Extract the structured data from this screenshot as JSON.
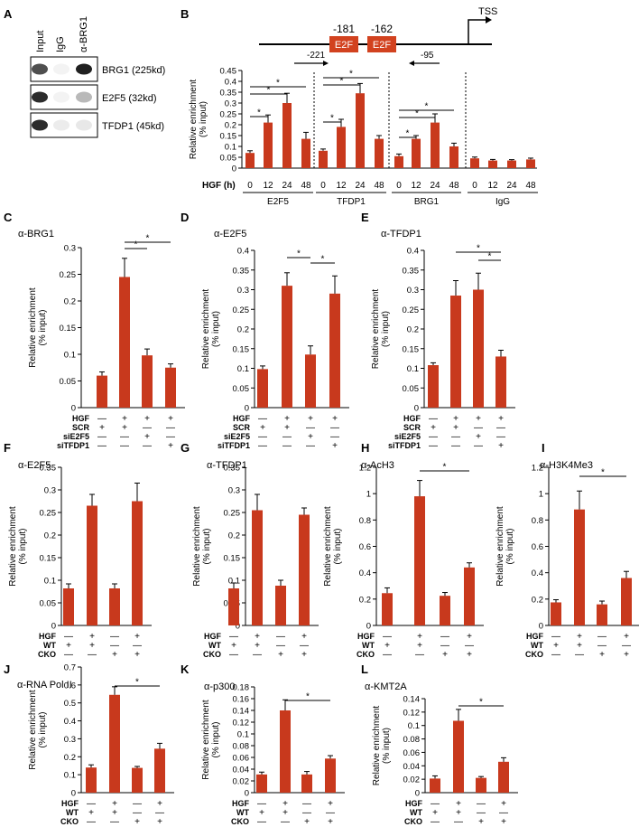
{
  "colors": {
    "bar": "#c8391d",
    "axis": "#000000",
    "e2f_box": "#d2421f"
  },
  "panel_letters": [
    "A",
    "B",
    "C",
    "D",
    "E",
    "F",
    "G",
    "H",
    "I",
    "J",
    "K",
    "L"
  ],
  "western_blot": {
    "lane_labels": [
      "Input",
      "IgG",
      "α-BRG1"
    ],
    "bands": [
      {
        "label": "BRG1 (225kd)",
        "intensity": [
          0.75,
          0.05,
          0.95
        ]
      },
      {
        "label": "E2F5 (32kd)",
        "intensity": [
          0.9,
          0.05,
          0.3
        ]
      },
      {
        "label": "TFDP1 (45kd)",
        "intensity": [
          0.9,
          0.08,
          0.1
        ]
      }
    ]
  },
  "promoter": {
    "tss_label": "TSS",
    "sites": [
      {
        "position": "-181",
        "label": "E2F"
      },
      {
        "position": "-162",
        "label": "E2F"
      }
    ],
    "primers": [
      {
        "label": "-221",
        "direction": "forward"
      },
      {
        "label": "-95",
        "direction": "reverse"
      }
    ]
  },
  "chart_data": [
    {
      "panel": "B",
      "type": "bar",
      "ylabel": "Relative enrichment (% input)",
      "ylim": [
        0,
        0.45
      ],
      "yticks": [
        0,
        0.05,
        0.1,
        0.15,
        0.2,
        0.25,
        0.3,
        0.35,
        0.4,
        0.45
      ],
      "row_labels": [
        "HGF (h)"
      ],
      "groups": [
        {
          "name": "E2F5",
          "categories": [
            "0",
            "12",
            "24",
            "48"
          ],
          "values": [
            0.07,
            0.21,
            0.3,
            0.135
          ],
          "errors": [
            0.01,
            0.035,
            0.045,
            0.03
          ]
        },
        {
          "name": "TFDP1",
          "categories": [
            "0",
            "12",
            "24",
            "48"
          ],
          "values": [
            0.08,
            0.19,
            0.345,
            0.135
          ],
          "errors": [
            0.008,
            0.035,
            0.045,
            0.015
          ]
        },
        {
          "name": "BRG1",
          "categories": [
            "0",
            "12",
            "24",
            "48"
          ],
          "values": [
            0.055,
            0.135,
            0.21,
            0.1
          ],
          "errors": [
            0.01,
            0.015,
            0.04,
            0.015
          ]
        },
        {
          "name": "IgG",
          "categories": [
            "0",
            "12",
            "24",
            "48"
          ],
          "values": [
            0.045,
            0.035,
            0.035,
            0.04
          ],
          "errors": [
            0.006,
            0.005,
            0.004,
            0.006
          ]
        }
      ],
      "significance_marker": "*"
    },
    {
      "panel": "C",
      "type": "bar",
      "title": "α-BRG1",
      "ylabel": "Relative enrichment (% input)",
      "ylim": [
        0,
        0.3
      ],
      "yticks": [
        0,
        0.05,
        0.1,
        0.15,
        0.2,
        0.25,
        0.3
      ],
      "values": [
        0.06,
        0.245,
        0.098,
        0.075
      ],
      "errors": [
        0.007,
        0.035,
        0.012,
        0.007
      ],
      "conditions": [
        {
          "label": "HGF",
          "marks": [
            "—",
            "+",
            "+",
            "+"
          ]
        },
        {
          "label": "SCR",
          "marks": [
            "+",
            "+",
            "—",
            "—"
          ]
        },
        {
          "label": "siE2F5",
          "marks": [
            "—",
            "—",
            "+",
            "—"
          ]
        },
        {
          "label": "siTFDP1",
          "marks": [
            "—",
            "—",
            "—",
            "+"
          ]
        }
      ],
      "significance_marker": "*"
    },
    {
      "panel": "D",
      "type": "bar",
      "title": "α-E2F5",
      "ylabel": "Relative enrichment (% input)",
      "ylim": [
        0,
        0.4
      ],
      "yticks": [
        0,
        0.05,
        0.1,
        0.15,
        0.2,
        0.25,
        0.3,
        0.35,
        0.4
      ],
      "values": [
        0.098,
        0.31,
        0.135,
        0.29
      ],
      "errors": [
        0.008,
        0.033,
        0.022,
        0.045
      ],
      "conditions": [
        {
          "label": "HGF",
          "marks": [
            "—",
            "+",
            "+",
            "+"
          ]
        },
        {
          "label": "SCR",
          "marks": [
            "+",
            "+",
            "—",
            "—"
          ]
        },
        {
          "label": "siE2F5",
          "marks": [
            "—",
            "—",
            "+",
            "—"
          ]
        },
        {
          "label": "siTFDP1",
          "marks": [
            "—",
            "—",
            "—",
            "+"
          ]
        }
      ],
      "significance_marker": "*"
    },
    {
      "panel": "E",
      "type": "bar",
      "title": "α-TFDP1",
      "ylabel": "Relative enrichment (% input)",
      "ylim": [
        0,
        0.4
      ],
      "yticks": [
        0,
        0.05,
        0.1,
        0.15,
        0.2,
        0.25,
        0.3,
        0.35,
        0.4
      ],
      "values": [
        0.108,
        0.285,
        0.3,
        0.13
      ],
      "errors": [
        0.006,
        0.038,
        0.042,
        0.016
      ],
      "conditions": [
        {
          "label": "HGF",
          "marks": [
            "—",
            "+",
            "+",
            "+"
          ]
        },
        {
          "label": "SCR",
          "marks": [
            "+",
            "+",
            "—",
            "—"
          ]
        },
        {
          "label": "siE2F5",
          "marks": [
            "—",
            "—",
            "+",
            "—"
          ]
        },
        {
          "label": "siTFDP1",
          "marks": [
            "—",
            "—",
            "—",
            "+"
          ]
        }
      ],
      "significance_marker": "*"
    },
    {
      "panel": "F",
      "type": "bar",
      "title": "α-E2F5",
      "ylabel": "Relative enrichment (% input)",
      "ylim": [
        0,
        0.35
      ],
      "yticks": [
        0,
        0.05,
        0.1,
        0.15,
        0.2,
        0.25,
        0.3,
        0.35
      ],
      "values": [
        0.082,
        0.265,
        0.082,
        0.275
      ],
      "errors": [
        0.01,
        0.025,
        0.01,
        0.04
      ],
      "conditions": [
        {
          "label": "HGF",
          "marks": [
            "—",
            "+",
            "—",
            "+"
          ]
        },
        {
          "label": "WT",
          "marks": [
            "+",
            "+",
            "—",
            "—"
          ]
        },
        {
          "label": "CKO",
          "marks": [
            "—",
            "—",
            "+",
            "+"
          ]
        }
      ]
    },
    {
      "panel": "G",
      "type": "bar",
      "title": "α-TFDP1",
      "ylabel": "Relative enrichment (% input)",
      "ylim": [
        0,
        0.35
      ],
      "yticks": [
        0,
        0.05,
        0.1,
        0.15,
        0.2,
        0.25,
        0.3,
        0.35
      ],
      "values": [
        0.082,
        0.255,
        0.088,
        0.245
      ],
      "errors": [
        0.012,
        0.035,
        0.012,
        0.015
      ],
      "conditions": [
        {
          "label": "HGF",
          "marks": [
            "—",
            "+",
            "—",
            "+"
          ]
        },
        {
          "label": "WT",
          "marks": [
            "+",
            "+",
            "—",
            "—"
          ]
        },
        {
          "label": "CKO",
          "marks": [
            "—",
            "—",
            "+",
            "+"
          ]
        }
      ]
    },
    {
      "panel": "H",
      "type": "bar",
      "title": "α-AcH3",
      "ylabel": "Relative enrichment (% input)",
      "ylim": [
        0,
        1.2
      ],
      "yticks": [
        0,
        0.2,
        0.4,
        0.6,
        0.8,
        1,
        1.2
      ],
      "values": [
        0.245,
        0.98,
        0.225,
        0.44
      ],
      "errors": [
        0.04,
        0.12,
        0.025,
        0.035
      ],
      "conditions": [
        {
          "label": "HGF",
          "marks": [
            "—",
            "+",
            "—",
            "+"
          ]
        },
        {
          "label": "WT",
          "marks": [
            "+",
            "+",
            "—",
            "—"
          ]
        },
        {
          "label": "CKO",
          "marks": [
            "—",
            "—",
            "+",
            "+"
          ]
        }
      ],
      "significance_marker": "*"
    },
    {
      "panel": "I",
      "type": "bar",
      "title": "α-H3K4Me3",
      "ylabel": "Relative enrichment (% input)",
      "ylim": [
        0,
        1.2
      ],
      "yticks": [
        0,
        0.2,
        0.4,
        0.6,
        0.8,
        1,
        1.2
      ],
      "values": [
        0.175,
        0.88,
        0.16,
        0.36
      ],
      "errors": [
        0.02,
        0.14,
        0.025,
        0.05
      ],
      "conditions": [
        {
          "label": "HGF",
          "marks": [
            "—",
            "+",
            "—",
            "+"
          ]
        },
        {
          "label": "WT",
          "marks": [
            "+",
            "+",
            "—",
            "—"
          ]
        },
        {
          "label": "CKO",
          "marks": [
            "—",
            "—",
            "+",
            "+"
          ]
        }
      ],
      "significance_marker": "*"
    },
    {
      "panel": "J",
      "type": "bar",
      "title": "α-RNA Pol II",
      "ylabel": "Relative enrichment (% input)",
      "ylim": [
        0,
        0.7
      ],
      "yticks": [
        0,
        0.1,
        0.2,
        0.3,
        0.4,
        0.5,
        0.6,
        0.7
      ],
      "values": [
        0.14,
        0.545,
        0.138,
        0.245
      ],
      "errors": [
        0.015,
        0.045,
        0.008,
        0.03
      ],
      "conditions": [
        {
          "label": "HGF",
          "marks": [
            "—",
            "+",
            "—",
            "+"
          ]
        },
        {
          "label": "WT",
          "marks": [
            "+",
            "+",
            "—",
            "—"
          ]
        },
        {
          "label": "CKO",
          "marks": [
            "—",
            "—",
            "+",
            "+"
          ]
        }
      ],
      "significance_marker": "*"
    },
    {
      "panel": "K",
      "type": "bar",
      "title": "α-p300",
      "ylabel": "Relative enrichment (% input)",
      "ylim": [
        0,
        0.18
      ],
      "yticks": [
        0,
        0.02,
        0.04,
        0.06,
        0.08,
        0.1,
        0.12,
        0.14,
        0.16,
        0.18
      ],
      "values": [
        0.031,
        0.14,
        0.031,
        0.058
      ],
      "errors": [
        0.004,
        0.018,
        0.005,
        0.005
      ],
      "conditions": [
        {
          "label": "HGF",
          "marks": [
            "—",
            "+",
            "—",
            "+"
          ]
        },
        {
          "label": "WT",
          "marks": [
            "+",
            "+",
            "—",
            "—"
          ]
        },
        {
          "label": "CKO",
          "marks": [
            "—",
            "—",
            "+",
            "+"
          ]
        }
      ],
      "significance_marker": "*"
    },
    {
      "panel": "L",
      "type": "bar",
      "title": "α-KMT2A",
      "ylabel": "Relative enrichment (% input)",
      "ylim": [
        0,
        0.14
      ],
      "yticks": [
        0,
        0.02,
        0.04,
        0.06,
        0.08,
        0.1,
        0.12,
        0.14
      ],
      "values": [
        0.021,
        0.107,
        0.022,
        0.046
      ],
      "errors": [
        0.004,
        0.017,
        0.002,
        0.006
      ],
      "conditions": [
        {
          "label": "HGF",
          "marks": [
            "—",
            "+",
            "—",
            "+"
          ]
        },
        {
          "label": "WT",
          "marks": [
            "+",
            "+",
            "—",
            "—"
          ]
        },
        {
          "label": "CKO",
          "marks": [
            "—",
            "—",
            "+",
            "+"
          ]
        }
      ],
      "significance_marker": "*"
    }
  ]
}
